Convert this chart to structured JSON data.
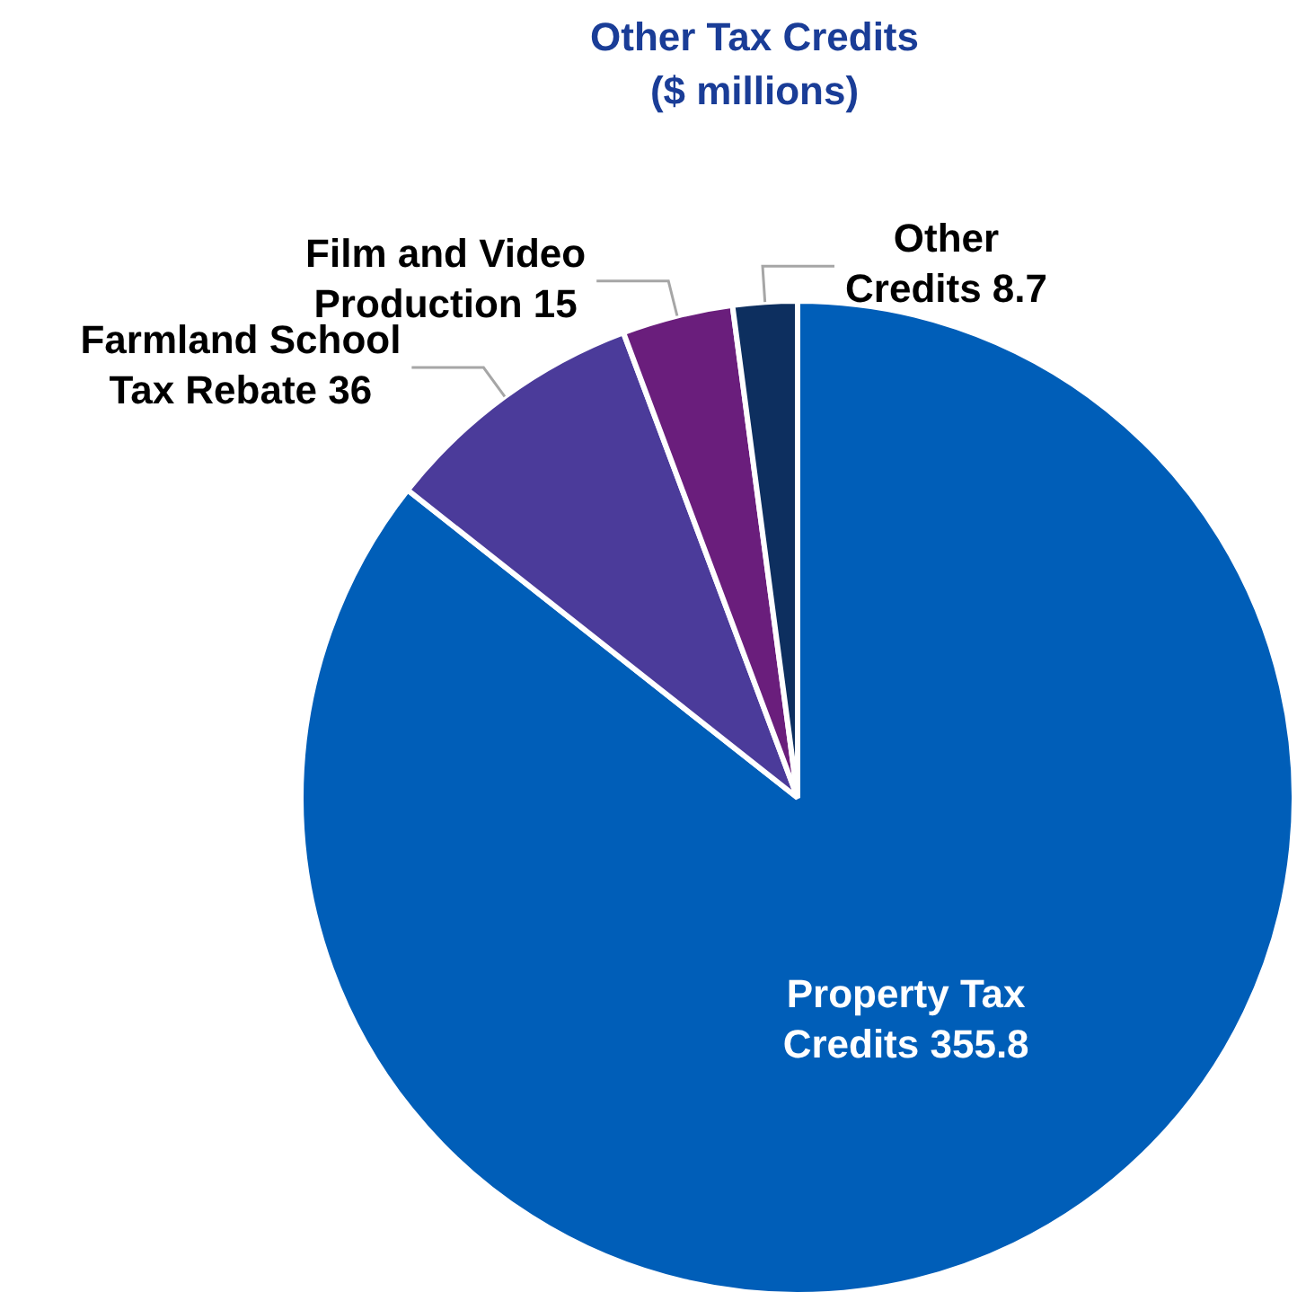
{
  "chart_data": {
    "type": "pie",
    "title": "Other Tax Credits ($ millions)",
    "categories": [
      "Property Tax Credits",
      "Farmland School Tax Rebate",
      "Film and Video Production",
      "Other Credits"
    ],
    "values": [
      355.8,
      36,
      15,
      8.7
    ],
    "colors": [
      "#005eb8",
      "#4b3b9a",
      "#6a1e7c",
      "#0d2f5f"
    ],
    "data_labels": true,
    "legend": false
  }
}
